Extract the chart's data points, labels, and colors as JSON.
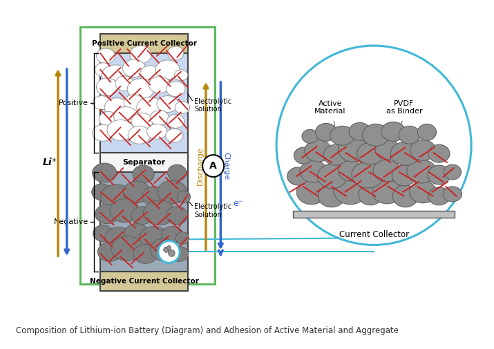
{
  "title": "Composition of Lithium-ion Battery (Diagram) and Adhesion of Active Material and Aggregate",
  "title_fontsize": 8.5,
  "bg_color": "#ffffff",
  "positive_label": "Positive",
  "negative_label": "Negative",
  "li_label": "Li⁺",
  "separator_label": "Separator",
  "pos_collector_label": "Positive Current Collector",
  "neg_collector_label": "Negative Current Collector",
  "electrolytic_label": "Electrolytic\nSolution",
  "charge_label": "Charge",
  "discharge_label": "Discharge",
  "eminus_label": "e⁻",
  "ammeter_label": "A",
  "active_material_label": "Active\nMaterial",
  "pvdf_label": "PVDF\nas Binder",
  "current_collector_label": "Current Collector",
  "green_color": "#5CB85C",
  "blue_color": "#3366CC",
  "gold_color": "#B8860B",
  "cyan_color": "#40B8D8",
  "red_color": "#CC2222",
  "pos_electrode_fill": "#C8D8F0",
  "neg_electrode_fill": "#9AA8B8",
  "tan_fill": "#D4C898",
  "separator_fill": "#F5F5F5"
}
